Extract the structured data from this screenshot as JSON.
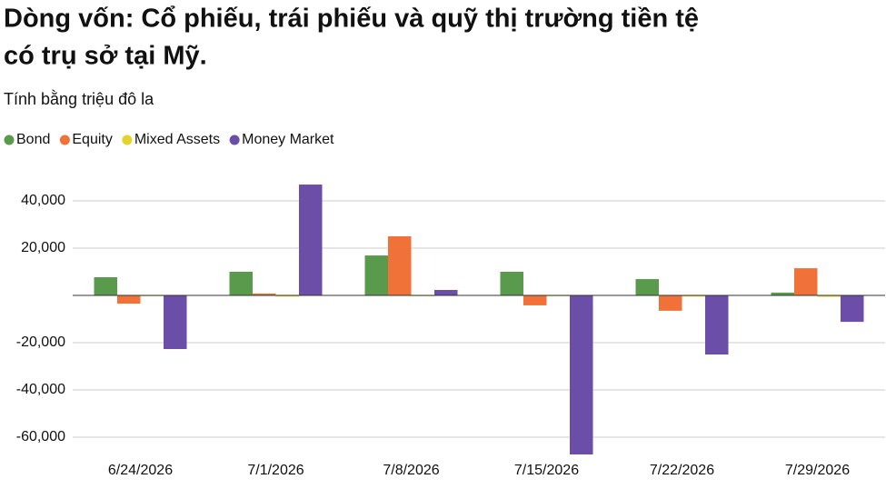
{
  "chart_data": {
    "type": "bar",
    "title": [
      "Dòng vốn: Cổ phiếu, trái phiếu và quỹ thị trường tiền tệ",
      "có trụ sở tại Mỹ."
    ],
    "subtitle": "Tính bằng triệu đô la",
    "categories": [
      "6/24/2026",
      "7/1/2026",
      "7/8/2026",
      "7/15/2026",
      "7/22/2026",
      "7/29/2026"
    ],
    "series": [
      {
        "name": "Bond",
        "color": "#5a9a4c",
        "values": [
          7700,
          10000,
          16900,
          10000,
          6900,
          1200
        ]
      },
      {
        "name": "Equity",
        "color": "#f07238",
        "values": [
          -3500,
          800,
          25000,
          -4200,
          -6500,
          11500
        ]
      },
      {
        "name": "Mixed Assets",
        "color": "#e5d22a",
        "values": [
          -300,
          -500,
          -300,
          -300,
          -500,
          -600
        ]
      },
      {
        "name": "Money Market",
        "color": "#6a4ea8",
        "values": [
          -22700,
          46900,
          2300,
          -67300,
          -25000,
          -11200
        ]
      }
    ],
    "ylim": [
      -70000,
      50000
    ],
    "yticks": [
      {
        "value": 40000,
        "label": "40,000"
      },
      {
        "value": 20000,
        "label": "20,000"
      },
      {
        "value": -20000,
        "label": "-20,000"
      },
      {
        "value": -40000,
        "label": "-40,000"
      },
      {
        "value": -60000,
        "label": "-60,000"
      }
    ],
    "grid": true,
    "legend": "top"
  }
}
